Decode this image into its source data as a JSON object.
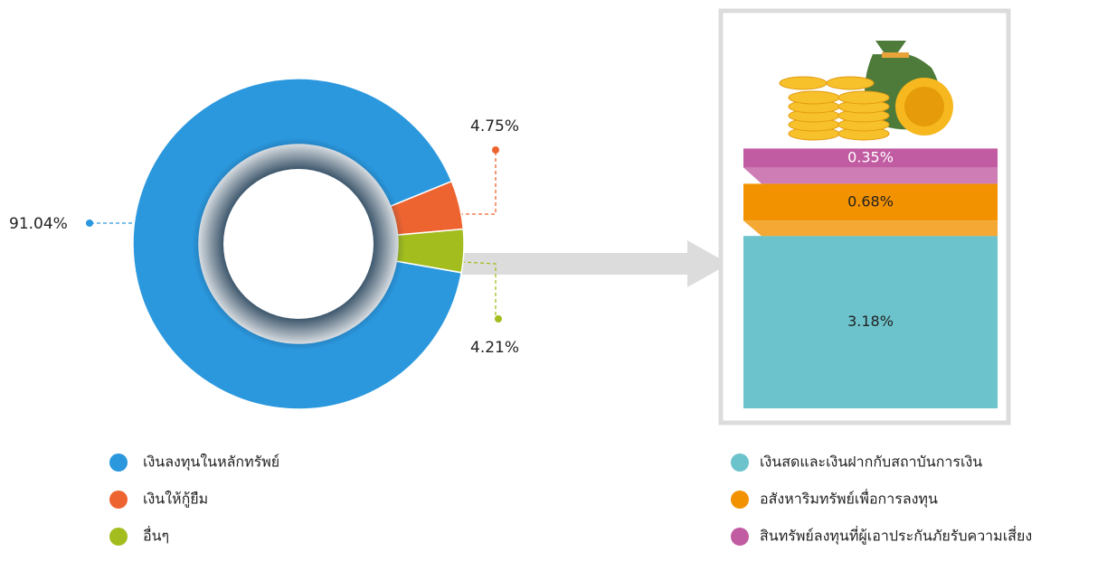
{
  "chart_data": [
    {
      "type": "donut",
      "categories": [
        "เงินลงทุนในหลักทรัพย์",
        "เงินให้กู้ยืม",
        "อื่นๆ"
      ],
      "values": [
        91.04,
        4.75,
        4.21
      ],
      "value_labels": [
        "91.04%",
        "4.75%",
        "4.21%"
      ],
      "colors": [
        "#2b98de",
        "#ee6430",
        "#a3bd1f"
      ]
    },
    {
      "type": "stacked-bar",
      "categories": [
        "เงินสดและเงินฝากกับสถาบันการเงิน",
        "อสังหาริมทรัพย์เพื่อการลงทุน",
        "สินทรัพย์ลงทุนที่ผู้เอาประกันภัยรับความเสี่ยง"
      ],
      "values": [
        3.18,
        0.68,
        0.35
      ],
      "value_labels": [
        "3.18%",
        "0.68%",
        "0.35%"
      ],
      "colors": [
        "#6cc3cc",
        "#f39200",
        "#c25ca2"
      ]
    }
  ]
}
